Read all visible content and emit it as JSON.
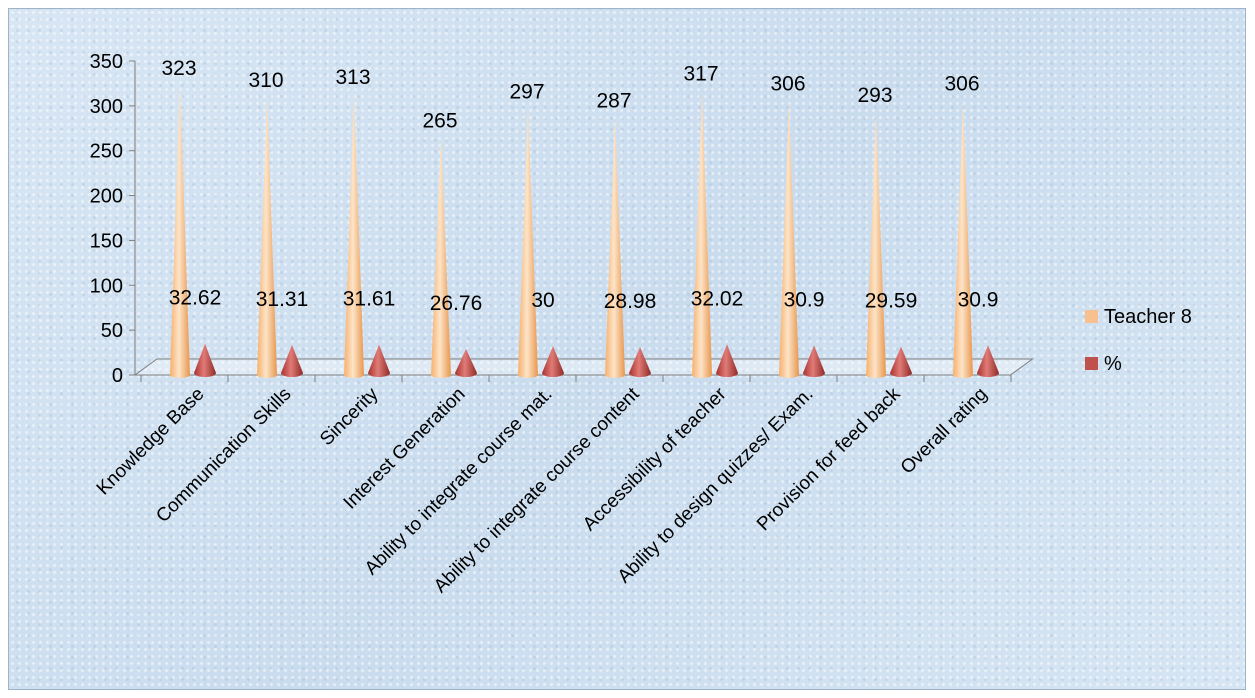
{
  "chart_data": {
    "type": "bar",
    "categories": [
      "Knowledge Base",
      "Communication Skills",
      "Sincerity",
      "Interest Generation",
      "Ability to integrate course mat.",
      "Ability to integrate course content",
      "Accessibility of teacher",
      "Ability to design quizzes/ Exam.",
      "Provision for feed back",
      "Overall rating"
    ],
    "series": [
      {
        "name": "Teacher 8",
        "color": "#f9c08f",
        "values": [
          323,
          310,
          313,
          265,
          297,
          287,
          317,
          306,
          293,
          306
        ],
        "labels": [
          "323",
          "310",
          "313",
          "265",
          "297",
          "287",
          "317",
          "306",
          "293",
          "306"
        ]
      },
      {
        "name": "%",
        "color": "#c0504d",
        "values": [
          32.62,
          31.31,
          31.61,
          26.76,
          30,
          28.98,
          32.02,
          30.9,
          29.59,
          30.9
        ],
        "labels": [
          "32.62",
          "31.31",
          "31.61",
          "26.76",
          "30",
          "28.98",
          "32.02",
          "30.9",
          "29.59",
          "30.9"
        ]
      }
    ],
    "ylim": [
      0,
      350
    ],
    "yticks": [
      "0",
      "50",
      "100",
      "150",
      "200",
      "250",
      "300",
      "350"
    ],
    "grid": false,
    "legend_position": "right"
  }
}
